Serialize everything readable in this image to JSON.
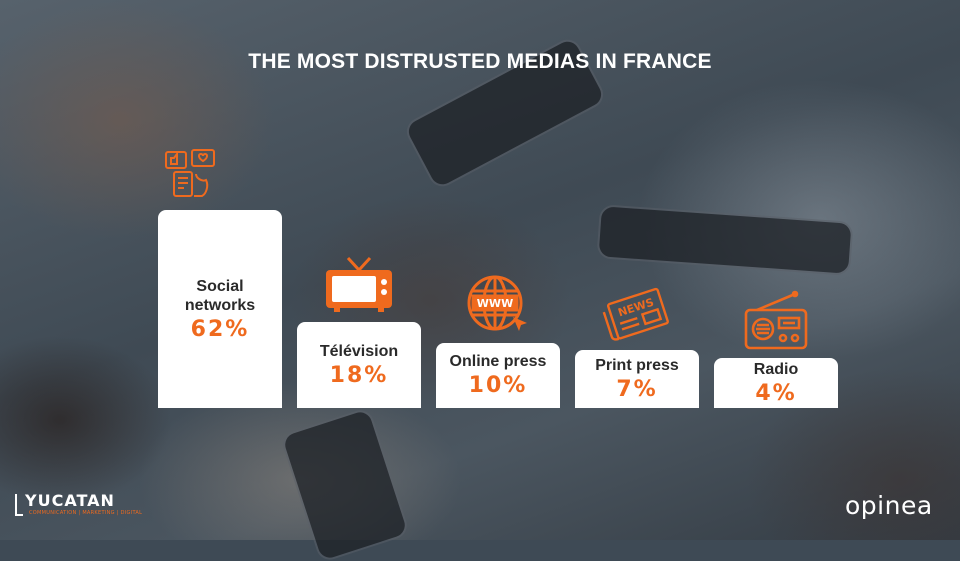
{
  "title": "THE MOST DISTRUSTED MEDIAS IN FRANCE",
  "chart_data": {
    "type": "bar",
    "title": "THE MOST DISTRUSTED MEDIAS IN FRANCE",
    "categories": [
      "Social networks",
      "Télévision",
      "Online press",
      "Print press",
      "Radio"
    ],
    "label_lines": [
      [
        "Social",
        "networks"
      ],
      [
        "Télévision"
      ],
      [
        "Online press"
      ],
      [
        "Print press"
      ],
      [
        "Radio"
      ]
    ],
    "values": [
      62,
      18,
      10,
      7,
      4
    ],
    "value_labels": [
      "62%",
      "18%",
      "10%",
      "7%",
      "4%"
    ],
    "icons": [
      "social-media-icon",
      "television-icon",
      "www-globe-icon",
      "newspaper-icon",
      "radio-icon"
    ],
    "accent_color": "#ef6a1e",
    "bar_color": "#ffffff",
    "xlabel": "",
    "ylabel": ""
  },
  "logos": {
    "left_name": "YUCATAN",
    "left_tagline": "COMMUNICATION | MARKETING | DIGITAL",
    "right_name": "opinea"
  }
}
